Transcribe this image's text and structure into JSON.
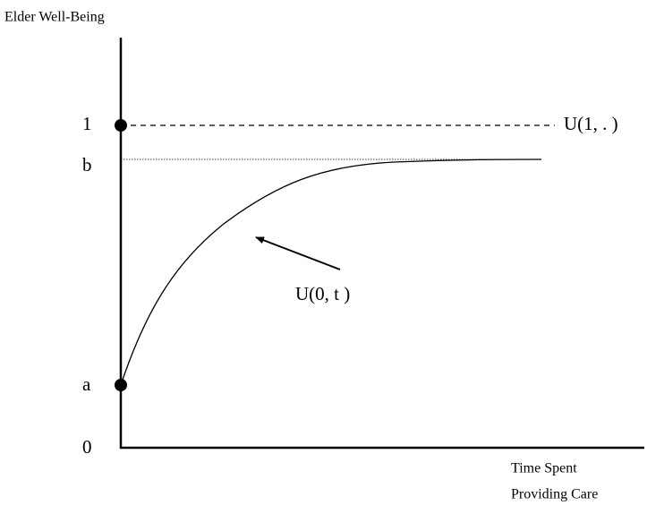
{
  "y_axis_title": "Elder Well-Being",
  "x_axis_title": [
    "Time Spent",
    "Providing Care"
  ],
  "y_labels": {
    "one": "1",
    "b": "b",
    "a": "a",
    "zero": "0"
  },
  "curve_labels": {
    "upper": "U(1, . )",
    "lower": "U(0, t )"
  }
}
